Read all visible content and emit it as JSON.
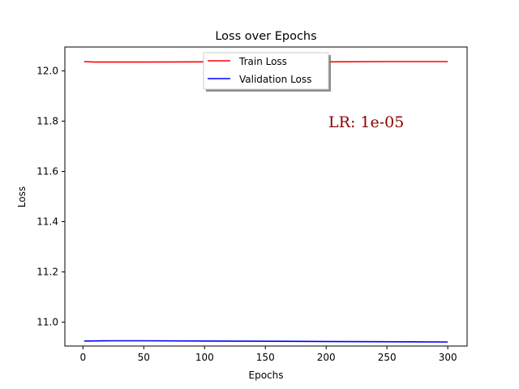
{
  "chart_data": {
    "type": "line",
    "title": "Loss over Epochs",
    "xlabel": "Epochs",
    "ylabel": "Loss",
    "xlim": [
      -14.9,
      315.9
    ],
    "ylim": [
      10.905,
      12.095
    ],
    "xticks": [
      0,
      50,
      100,
      150,
      200,
      250,
      300
    ],
    "yticks": [
      11.0,
      11.2,
      11.4,
      11.6,
      11.8,
      12.0
    ],
    "ytick_labels": [
      "11.0",
      "11.2",
      "11.4",
      "11.6",
      "11.8",
      "12.0"
    ],
    "grid": false,
    "legend_position": "top-center",
    "series": [
      {
        "name": "Train Loss",
        "color": "#ff0000",
        "x": [
          1,
          10,
          25,
          50,
          100,
          150,
          200,
          250,
          300
        ],
        "y": [
          12.037,
          12.035,
          12.035,
          12.035,
          12.036,
          12.036,
          12.036,
          12.037,
          12.037
        ]
      },
      {
        "name": "Validation Loss",
        "color": "#0000ff",
        "x": [
          1,
          25,
          50,
          100,
          150,
          200,
          250,
          300
        ],
        "y": [
          10.925,
          10.926,
          10.926,
          10.925,
          10.924,
          10.923,
          10.922,
          10.921
        ]
      }
    ],
    "annotation": {
      "text": "LR: 1e-05",
      "color": "#8b0000",
      "x": 233,
      "y": 11.775
    }
  }
}
